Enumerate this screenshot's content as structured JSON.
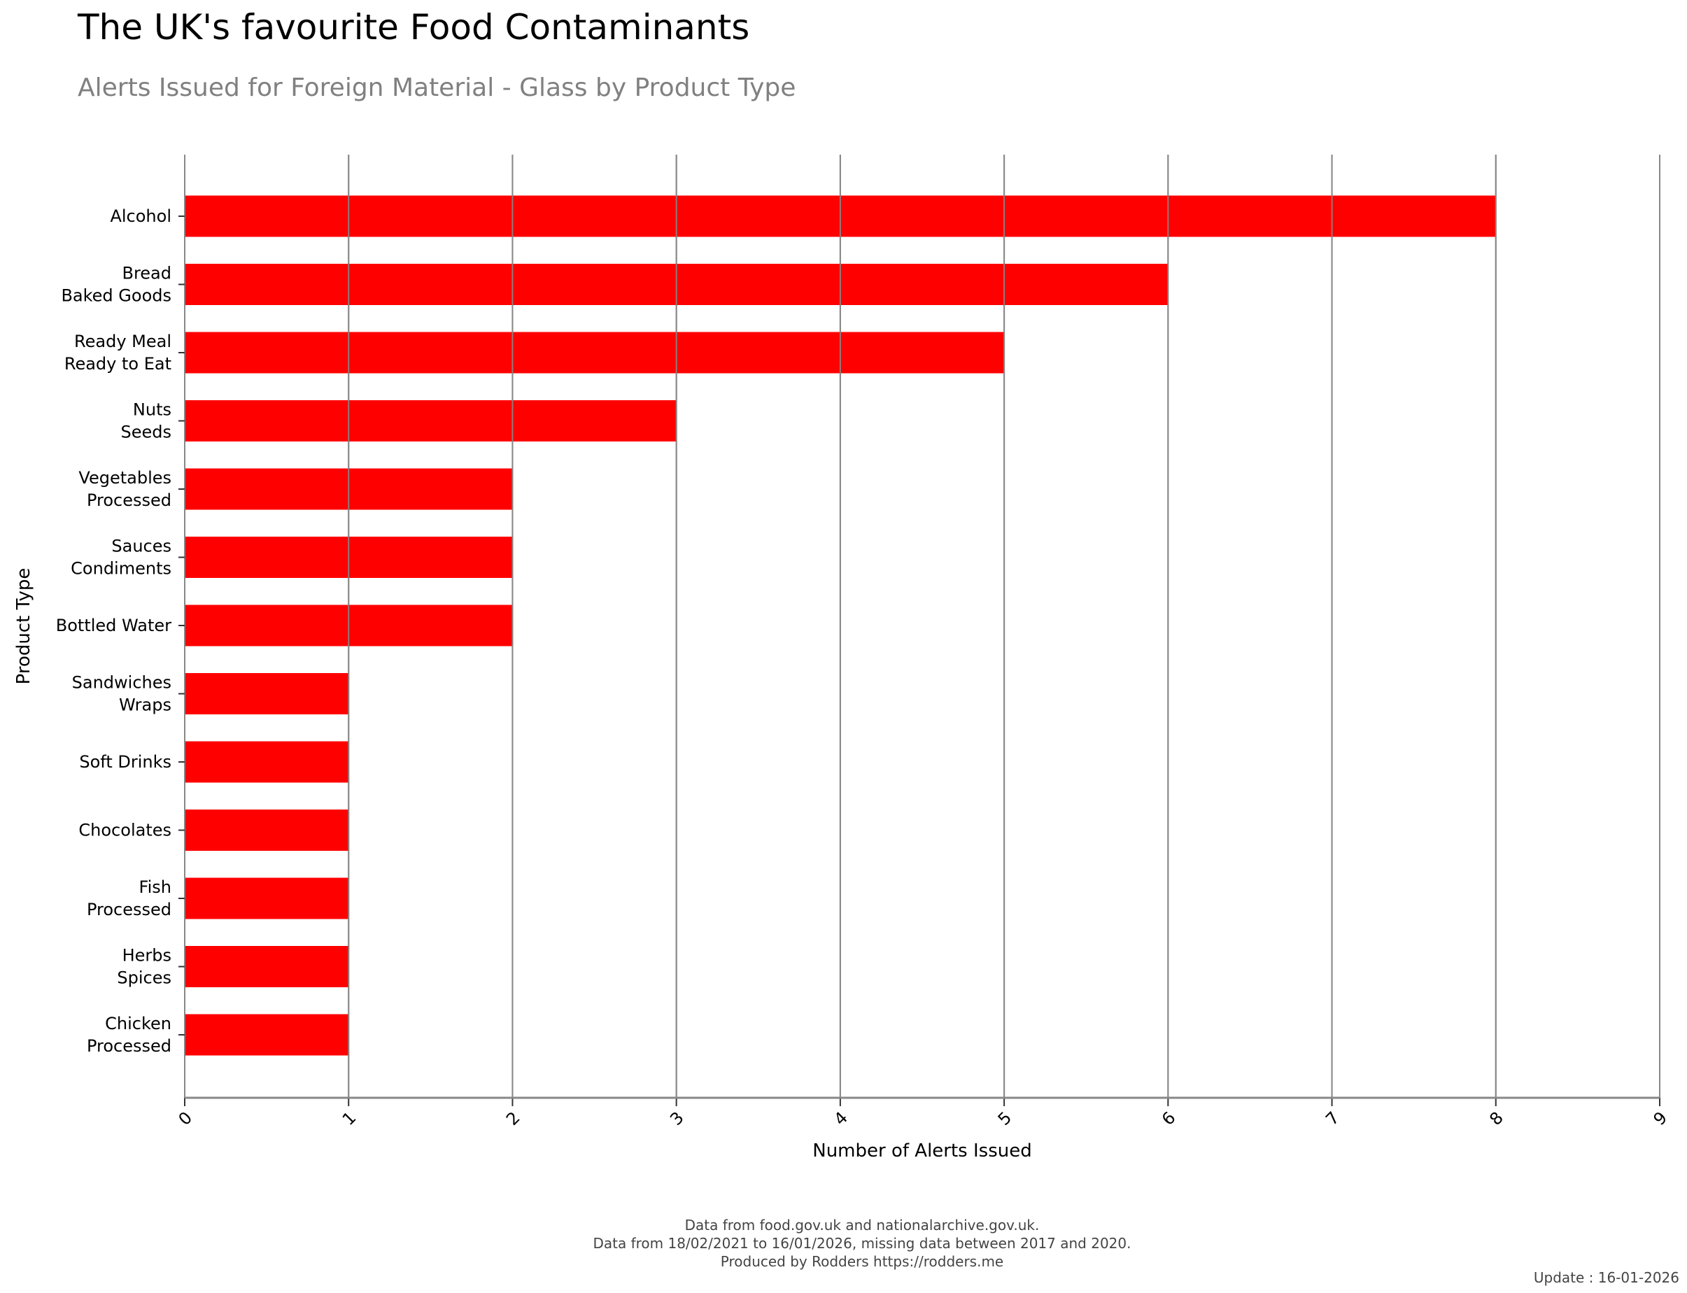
{
  "chart_data": {
    "type": "bar",
    "orientation": "horizontal",
    "title": "The UK's favourite Food Contaminants",
    "subtitle": "Alerts Issued for Foreign Material - Glass by Product Type",
    "xlabel": "Number of Alerts Issued",
    "ylabel": "Product Type",
    "xlim": [
      0,
      9
    ],
    "xticks": [
      "0",
      "1",
      "2",
      "3",
      "4",
      "5",
      "6",
      "7",
      "8",
      "9"
    ],
    "grid": true,
    "bar_color": "#ff0000",
    "categories": [
      [
        "Alcohol"
      ],
      [
        "Bread",
        "Baked Goods"
      ],
      [
        "Ready Meal",
        "Ready to Eat"
      ],
      [
        "Nuts",
        "Seeds"
      ],
      [
        "Vegetables",
        "Processed"
      ],
      [
        "Sauces",
        "Condiments"
      ],
      [
        "Bottled Water"
      ],
      [
        "Sandwiches",
        "Wraps"
      ],
      [
        "Soft Drinks"
      ],
      [
        "Chocolates"
      ],
      [
        "Fish",
        "Processed"
      ],
      [
        "Herbs",
        "Spices"
      ],
      [
        "Chicken",
        "Processed"
      ]
    ],
    "values": [
      8,
      6,
      5,
      3,
      2,
      2,
      2,
      1,
      1,
      1,
      1,
      1,
      1
    ]
  },
  "footer": {
    "line1": "Data from food.gov.uk and nationalarchive.gov.uk.",
    "line2": "Data from 18/02/2021 to 16/01/2026, missing data between 2017 and 2020.",
    "line3": "Produced by Rodders https://rodders.me",
    "update": "Update : 16-01-2026"
  }
}
